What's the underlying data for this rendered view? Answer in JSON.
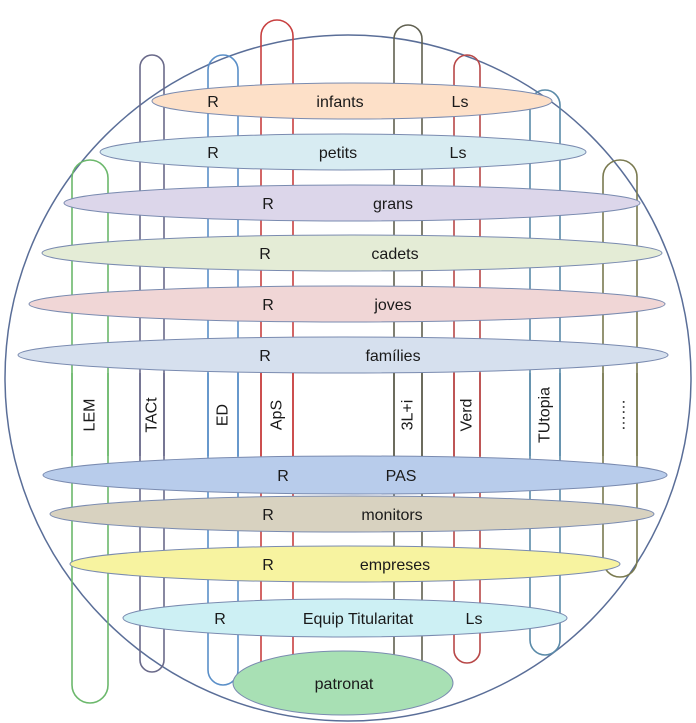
{
  "rings": [
    {
      "id": "infants",
      "label": "infants",
      "left_tag": "R",
      "right_tag": "Ls",
      "fill": "#fde0c8"
    },
    {
      "id": "petits",
      "label": "petits",
      "left_tag": "R",
      "right_tag": "Ls",
      "fill": "#d8ecf2"
    },
    {
      "id": "grans",
      "label": "grans",
      "left_tag": "R",
      "right_tag": "",
      "fill": "#dcd6ea"
    },
    {
      "id": "cadets",
      "label": "cadets",
      "left_tag": "R",
      "right_tag": "",
      "fill": "#e4ecd6"
    },
    {
      "id": "joves",
      "label": "joves",
      "left_tag": "R",
      "right_tag": "",
      "fill": "#f0d6d6"
    },
    {
      "id": "families",
      "label": "famílies",
      "left_tag": "R",
      "right_tag": "",
      "fill": "#d6e0ee"
    },
    {
      "id": "pas",
      "label": "PAS",
      "left_tag": "R",
      "right_tag": "",
      "fill": "#b8cceb"
    },
    {
      "id": "monitors",
      "label": "monitors",
      "left_tag": "R",
      "right_tag": "",
      "fill": "#d8d2c0"
    },
    {
      "id": "empreses",
      "label": "empreses",
      "left_tag": "R",
      "right_tag": "",
      "fill": "#f7f3a0"
    },
    {
      "id": "equip",
      "label": "Equip Titularitat",
      "left_tag": "R",
      "right_tag": "Ls",
      "fill": "#cdf0f4"
    }
  ],
  "patronat": {
    "label": "patronat",
    "fill": "#a8e0b4"
  },
  "columns": [
    {
      "id": "lem",
      "label": "LEM",
      "color": "#6cb86c"
    },
    {
      "id": "tact",
      "label": "TACt",
      "color": "#6a6a8a"
    },
    {
      "id": "ed",
      "label": "ED",
      "color": "#5a8fc8"
    },
    {
      "id": "aps",
      "label": "ApS",
      "color": "#c84040"
    },
    {
      "id": "3li",
      "label": "3L+i",
      "color": "#606050"
    },
    {
      "id": "verd",
      "label": "Verd",
      "color": "#b84848"
    },
    {
      "id": "tutopia",
      "label": "TUtopia",
      "color": "#5a8aa8"
    },
    {
      "id": "more",
      "label": "……",
      "color": "#7a7a50"
    }
  ],
  "outline_color": "#5a6e98"
}
